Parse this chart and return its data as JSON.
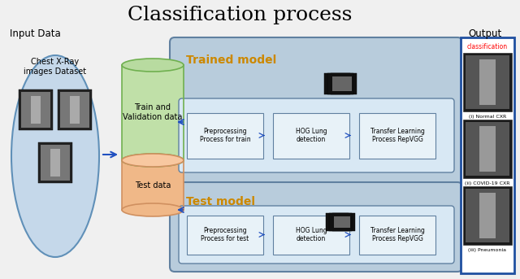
{
  "title": "Classification process",
  "title_fontsize": 18,
  "background_color": "#f0f0f0",
  "input_label": "Input Data",
  "output_label": "Output",
  "dataset_label": "Chest X-Ray\nimages Dataset",
  "cylinder_top_label": "Train and\nValidation data",
  "cylinder_bottom_label": "Test data",
  "trained_model_label": "Trained model",
  "test_model_label": "Test model",
  "train_boxes": [
    "Preprocessing\nProcess for train",
    "HOG Lung\ndetection",
    "Transfer Learning\nProcess RepVGG"
  ],
  "test_boxes": [
    "Preprocessing\nProcess for test",
    "HOG Lung\ndetection",
    "Transfer Learning\nProcess RepVGG"
  ],
  "output_labels": [
    "(i) Normal CXR",
    "(ii) COVID-19 CXR",
    "(iii) Pneumonia"
  ],
  "classification_label": "classification",
  "ellipse_color": "#c5d8ea",
  "ellipse_border": "#6090b8",
  "cylinder_green_top": "#b8dba0",
  "cylinder_green_body": "#c0e0a8",
  "cylinder_green_border": "#70b050",
  "cylinder_orange_top": "#f8c8a0",
  "cylinder_orange_body": "#f0b888",
  "cylinder_orange_border": "#d09060",
  "trained_bg": "#b8ccdc",
  "trained_border": "#6080a0",
  "test_bg": "#b8ccdc",
  "test_border": "#6080a0",
  "inner_box_bg": "#d8e8f4",
  "inner_box_border": "#6080a0",
  "process_box_bg": "#e8f2f8",
  "process_box_border": "#6080a0",
  "output_box_border": "#2050a0",
  "output_box_bg": "#ffffff",
  "trained_model_color": "#cc8800",
  "test_model_color": "#cc8800",
  "arrow_color": "#2050c0",
  "connector_color": "#6080a0"
}
